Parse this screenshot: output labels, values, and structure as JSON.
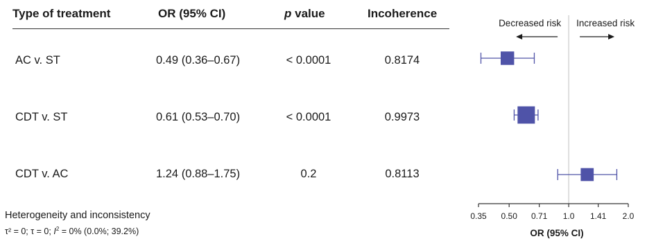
{
  "table": {
    "headers": {
      "treatment": "Type of treatment",
      "or": "OR (95% CI)",
      "p_italic": "p",
      "p_rest": " value",
      "incoherence": "Incoherence"
    },
    "rows": [
      {
        "treatment": "AC v. ST",
        "or_ci": "0.49 (0.36–0.67)",
        "p": "< 0.0001",
        "incoherence": "0.8174"
      },
      {
        "treatment": "CDT v. ST",
        "or_ci": "0.61 (0.53–0.70)",
        "p": "< 0.0001",
        "incoherence": "0.9973"
      },
      {
        "treatment": "CDT v. AC",
        "or_ci": "1.24 (0.88–1.75)",
        "p": "0.2",
        "incoherence": "0.8113"
      }
    ]
  },
  "footer": {
    "heading": "Heterogeneity and inconsistency",
    "stats_a": "τ² = 0; τ = 0; ",
    "stats_i": "I",
    "stats_sup": "2",
    "stats_b": " = 0% (0.0%; 39.2%)"
  },
  "chart_data": {
    "type": "scatter",
    "subtype": "forest",
    "scale": "log",
    "xlabel": "OR (95% CI)",
    "xticks": [
      0.35,
      0.5,
      0.71,
      1.0,
      1.41,
      2.0
    ],
    "xtick_labels": [
      "0.35",
      "0.50",
      "0.71",
      "1.0",
      "1.41",
      "2.0"
    ],
    "xlim": [
      0.35,
      2.0
    ],
    "reference_line": 1.0,
    "annotations": {
      "left": "Decreased risk",
      "right": "Increased risk"
    },
    "categories": [
      "AC v. ST",
      "CDT v. ST",
      "CDT v. AC"
    ],
    "points": [
      {
        "label": "AC v. ST",
        "or": 0.49,
        "lower": 0.36,
        "upper": 0.67,
        "weight": 0.6
      },
      {
        "label": "CDT v. ST",
        "or": 0.61,
        "lower": 0.53,
        "upper": 0.7,
        "weight": 1.0
      },
      {
        "label": "CDT v. AC",
        "or": 1.24,
        "lower": 0.88,
        "upper": 1.75,
        "weight": 0.55
      }
    ],
    "colors": {
      "marker": "#4f53a8",
      "line": "#4f53a8",
      "reference": "#c8c8c8",
      "axis": "#333333"
    }
  }
}
